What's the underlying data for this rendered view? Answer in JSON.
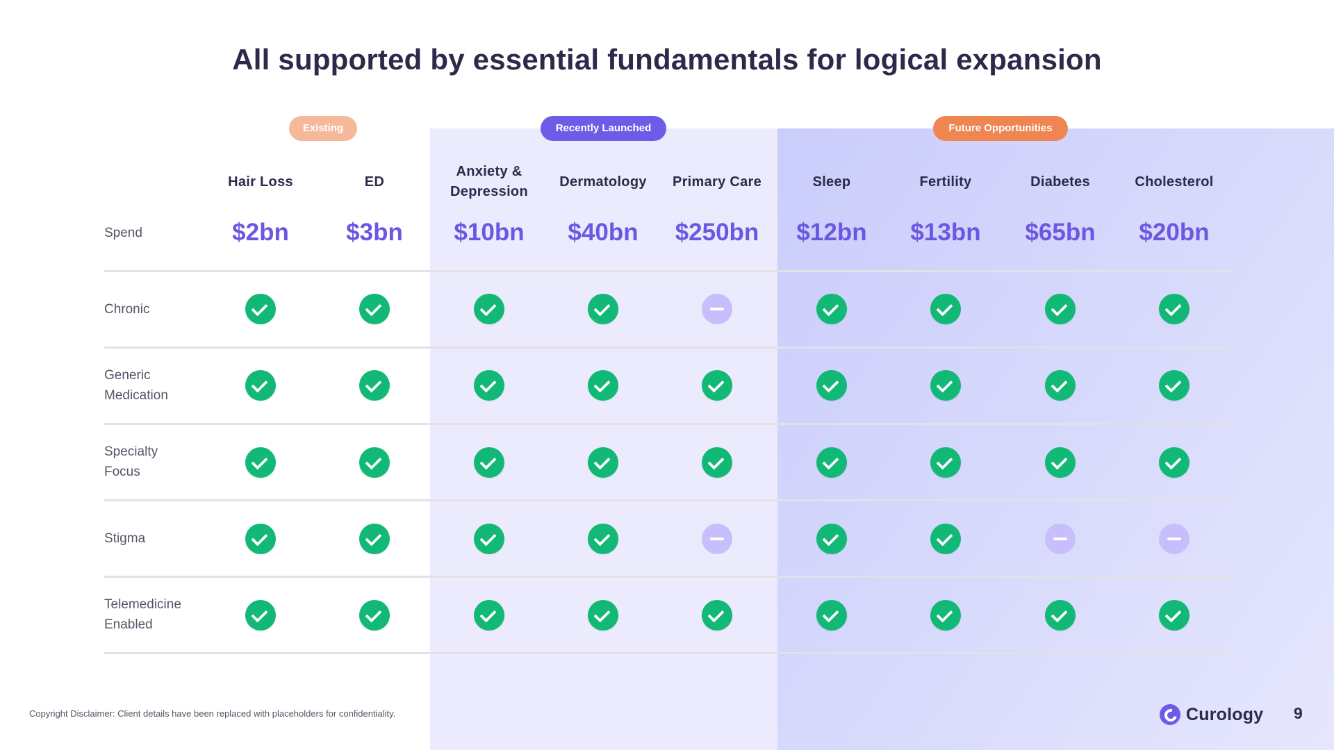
{
  "title": "All supported by essential fundamentals for logical expansion",
  "groups": {
    "existing": "Existing",
    "recently_launched": "Recently Launched",
    "future": "Future Opportunities"
  },
  "columns": [
    {
      "name": "Hair Loss",
      "spend": "$2bn"
    },
    {
      "name": "ED",
      "spend": "$3bn"
    },
    {
      "name": "Anxiety & Depression",
      "spend": "$10bn"
    },
    {
      "name": "Dermatology",
      "spend": "$40bn"
    },
    {
      "name": "Primary Care",
      "spend": "$250bn"
    },
    {
      "name": "Sleep",
      "spend": "$12bn"
    },
    {
      "name": "Fertility",
      "spend": "$13bn"
    },
    {
      "name": "Diabetes",
      "spend": "$65bn"
    },
    {
      "name": "Cholesterol",
      "spend": "$20bn"
    }
  ],
  "row_labels": {
    "spend": "Spend",
    "chronic": "Chronic",
    "generic": "Generic Medication",
    "specialty": "Specialty Focus",
    "stigma": "Stigma",
    "telemedicine": "Telemedicine Enabled"
  },
  "matrix": {
    "chronic": [
      "check",
      "check",
      "check",
      "check",
      "dash",
      "check",
      "check",
      "check",
      "check"
    ],
    "generic": [
      "check",
      "check",
      "check",
      "check",
      "check",
      "check",
      "check",
      "check",
      "check"
    ],
    "specialty": [
      "check",
      "check",
      "check",
      "check",
      "check",
      "check",
      "check",
      "check",
      "check"
    ],
    "stigma": [
      "check",
      "check",
      "check",
      "check",
      "dash",
      "check",
      "check",
      "dash",
      "dash"
    ],
    "telemedicine": [
      "check",
      "check",
      "check",
      "check",
      "check",
      "check",
      "check",
      "check",
      "check"
    ]
  },
  "legend_icons": {
    "check": "check-circle-icon",
    "dash": "dash-circle-icon"
  },
  "colors": {
    "title": "#2c2a4a",
    "spend": "#6b57e3",
    "check": "#12b876",
    "dash": "#c6bffb",
    "existing_pill": "#f5b99a",
    "recent_pill": "#6c5ce7",
    "future_pill": "#ef8551"
  },
  "footer": {
    "copyright": "Copyright Disclaimer: Client details have been replaced with placeholders for confidentiality.",
    "brand": "Curology",
    "page_number": "9"
  }
}
